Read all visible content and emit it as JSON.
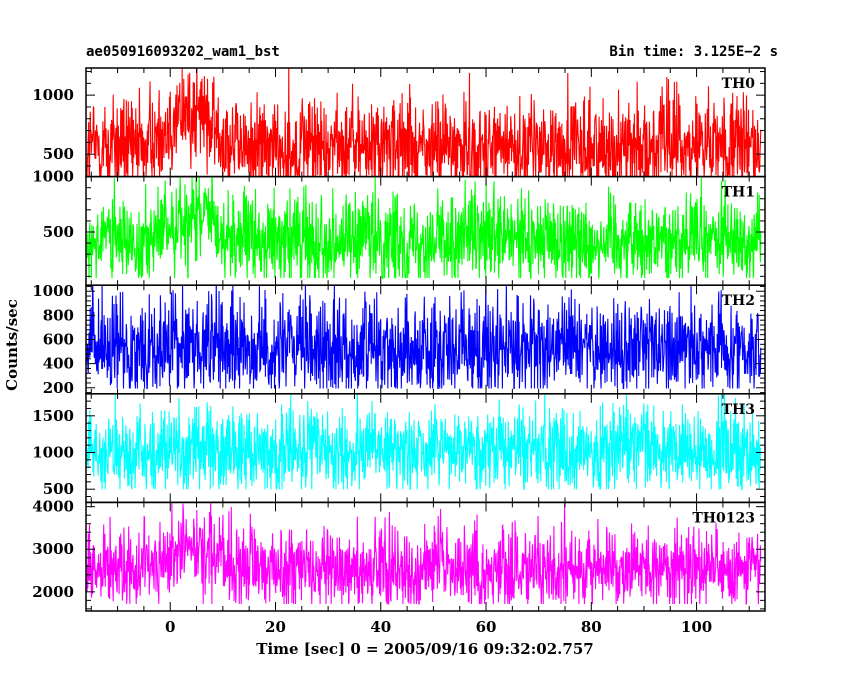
{
  "header": {
    "left_title": "ae050916093202_wam1_bst",
    "right_title": "Bin time: 3.125E−2 s"
  },
  "chart_data": {
    "type": "line",
    "xlabel": "Time [sec] 0 = 2005/09/16 09:32:02.757",
    "ylabel": "Counts/sec",
    "xlim": [
      -16,
      113
    ],
    "x_ticks": [
      0,
      20,
      40,
      60,
      80,
      100
    ],
    "x_range_data": [
      -15.8,
      112.2
    ],
    "bin_time": 0.03125,
    "grid": false,
    "panels": [
      {
        "name": "TH0",
        "color": "#ff0000",
        "ylim": [
          310,
          1230
        ],
        "y_ticks": [
          500,
          1000
        ],
        "baseline": 560,
        "burst_peak": 860,
        "low_level": 350,
        "high_level": 1100
      },
      {
        "name": "TH1",
        "color": "#00ff00",
        "ylim": [
          20,
          1000
        ],
        "y_ticks": [
          500,
          1000
        ],
        "baseline": 430,
        "burst_peak": 620,
        "low_level": 120,
        "high_level": 850
      },
      {
        "name": "TH2",
        "color": "#0000ff",
        "ylim": [
          150,
          1050
        ],
        "y_ticks": [
          200,
          400,
          600,
          800,
          1000
        ],
        "baseline": 530,
        "burst_peak": 560,
        "low_level": 230,
        "high_level": 950
      },
      {
        "name": "TH3",
        "color": "#00ffff",
        "ylim": [
          320,
          1800
        ],
        "y_ticks": [
          500,
          1000,
          1500
        ],
        "baseline": 1030,
        "burst_peak": 1060,
        "low_level": 550,
        "high_level": 1600
      },
      {
        "name": "TH0123",
        "color": "#ff00ff",
        "ylim": [
          1550,
          4100
        ],
        "y_ticks": [
          2000,
          3000,
          4000
        ],
        "baseline": 2550,
        "burst_peak": 3000,
        "low_level": 1800,
        "high_level": 3500
      }
    ]
  }
}
